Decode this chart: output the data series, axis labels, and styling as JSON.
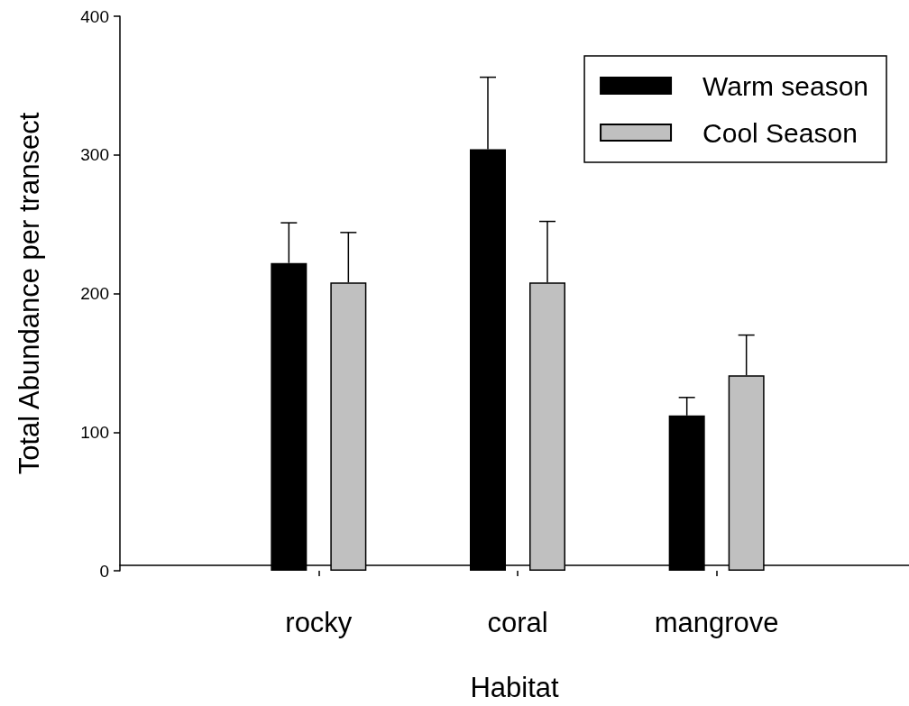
{
  "chart_data": {
    "type": "bar",
    "xlabel": "Habitat",
    "ylabel": "Total Abundance per transect",
    "categories": [
      "rocky",
      "coral",
      "mangrove"
    ],
    "series": [
      {
        "name": "Warm season",
        "color": "#000000",
        "values": [
          222,
          304,
          112
        ],
        "errors": [
          [
            222,
            251
          ],
          [
            304,
            356
          ],
          [
            112,
            125
          ]
        ]
      },
      {
        "name": "Cool Season",
        "color": "#c0c0c0",
        "values": [
          208,
          208,
          141
        ],
        "errors": [
          [
            208,
            244
          ],
          [
            208,
            252
          ],
          [
            141,
            170
          ]
        ]
      }
    ],
    "ylim": [
      0,
      400
    ],
    "yticks": [
      0,
      100,
      200,
      300,
      400
    ],
    "grid": false,
    "legend": "top right"
  }
}
